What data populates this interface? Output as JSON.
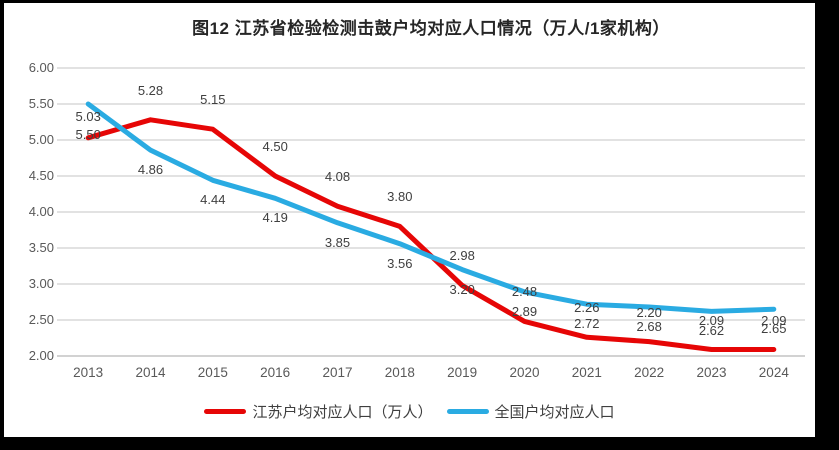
{
  "frame": {
    "border_color": "#000000",
    "background": "#ffffff"
  },
  "chart_data": {
    "type": "line",
    "title": "图12  江苏省检验检测击鼓户均对应人口情况（万人/1家机构）",
    "categories": [
      "2013",
      "2014",
      "2015",
      "2016",
      "2017",
      "2018",
      "2019",
      "2020",
      "2021",
      "2022",
      "2023",
      "2024"
    ],
    "series": [
      {
        "name": "江苏户均对应人口（万人）",
        "color": "#e60606",
        "values": [
          5.03,
          5.28,
          5.15,
          4.5,
          4.08,
          3.8,
          2.98,
          2.48,
          2.26,
          2.2,
          2.09,
          2.09
        ],
        "label_position": "above"
      },
      {
        "name": "全国户均对应人口",
        "color": "#2aabe2",
        "values": [
          5.5,
          4.86,
          4.44,
          4.19,
          3.85,
          3.56,
          3.2,
          2.89,
          2.72,
          2.68,
          2.62,
          2.65
        ],
        "label_position": "below"
      }
    ],
    "ylim": [
      2.0,
      6.0
    ],
    "ytick_step": 0.5,
    "ytick_labels": [
      "6.00",
      "5.50",
      "5.00",
      "4.50",
      "4.00",
      "3.50",
      "3.00",
      "2.50",
      "2.00"
    ],
    "xlabel": "",
    "ylabel": "",
    "grid": true,
    "gridline_color": "#e2e2e2",
    "axis_label_color": "#595959",
    "data_label_color": "#3f3f3f",
    "legend_position": "bottom"
  }
}
